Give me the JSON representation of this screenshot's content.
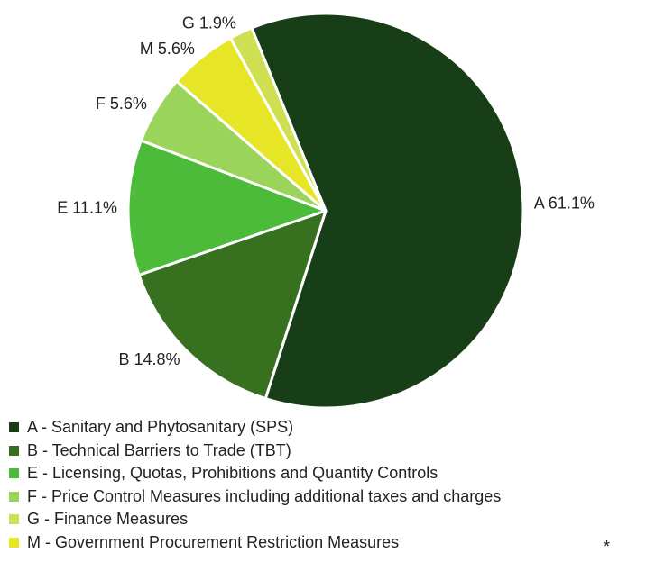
{
  "chart_data": {
    "type": "pie",
    "title": "",
    "slices": [
      {
        "code": "A",
        "label": "A 61.1%",
        "value": 61.1,
        "color": "#173e17",
        "legend": "A - Sanitary and Phytosanitary (SPS)"
      },
      {
        "code": "B",
        "label": "B 14.8%",
        "value": 14.8,
        "color": "#37711f",
        "legend": "B - Technical Barriers to Trade (TBT)"
      },
      {
        "code": "E",
        "label": "E 11.1%",
        "value": 11.1,
        "color": "#4dbb3a",
        "legend": "E - Licensing, Quotas, Prohibitions and Quantity Controls"
      },
      {
        "code": "F",
        "label": "F 5.6%",
        "value": 5.6,
        "color": "#9ad45a",
        "legend": "F - Price Control Measures including additional taxes and charges"
      },
      {
        "code": "M",
        "label": "M 5.6%",
        "value": 5.6,
        "color": "#e6e626",
        "legend": "M - Government Procurement Restriction Measures"
      },
      {
        "code": "G",
        "label": "G 1.9%",
        "value": 1.9,
        "color": "#cee051",
        "legend": "G - Finance Measures"
      }
    ],
    "legend_order": [
      "A",
      "B",
      "E",
      "F",
      "G",
      "M"
    ],
    "legend_placement": "bottom"
  },
  "footnote_mark": "*"
}
